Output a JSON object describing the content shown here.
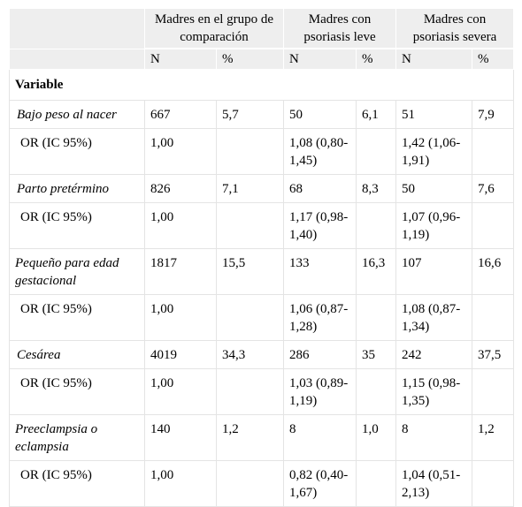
{
  "header": {
    "groups": [
      "Madres en el grupo de comparación",
      "Madres con psoriasis leve",
      "Madres con psoriasis severa"
    ],
    "subheaders": [
      "N",
      "%",
      "N",
      "%",
      "N",
      "%"
    ]
  },
  "variable_label": "Variable",
  "rows": [
    {
      "label": "Bajo peso al nacer",
      "cells": [
        "667",
        "5,7",
        "50",
        "6,1",
        "51",
        "7,9"
      ]
    },
    {
      "label": "OR (IC 95%)",
      "cells": [
        "1,00",
        "",
        "1,08 (0,80-1,45)",
        "",
        "1,42 (1,06-1,91)",
        ""
      ]
    },
    {
      "label": "Parto pretérmino",
      "cells": [
        "826",
        "7,1",
        "68",
        "8,3",
        "50",
        "7,6"
      ]
    },
    {
      "label": "OR (IC 95%)",
      "cells": [
        "1,00",
        "",
        "1,17 (0,98-1,40)",
        "",
        "1,07 (0,96-1,19)",
        ""
      ]
    },
    {
      "label": "Pequeño para edad gestacional",
      "cells": [
        "1817",
        "15,5",
        "133",
        "16,3",
        "107",
        "16,6"
      ]
    },
    {
      "label": "OR (IC 95%)",
      "cells": [
        "1,00",
        "",
        "1,06 (0,87-1,28)",
        "",
        "1,08 (0,87-1,34)",
        ""
      ]
    },
    {
      "label": "Cesárea",
      "cells": [
        "4019",
        "34,3",
        "286",
        "35",
        "242",
        "37,5"
      ]
    },
    {
      "label": "OR (IC 95%)",
      "cells": [
        "1,00",
        "",
        "1,03 (0,89-1,19)",
        "",
        "1,15 (0,98-1,35)",
        ""
      ]
    },
    {
      "label": "Preeclampsia o eclampsia",
      "cells": [
        "140",
        "1,2",
        "8",
        "1,0",
        "8",
        "1,2"
      ]
    },
    {
      "label": "OR (IC 95%)",
      "cells": [
        "1,00",
        "",
        "0,82 (0,40-1,67)",
        "",
        "1,04 (0,51-2,13)",
        ""
      ]
    }
  ]
}
